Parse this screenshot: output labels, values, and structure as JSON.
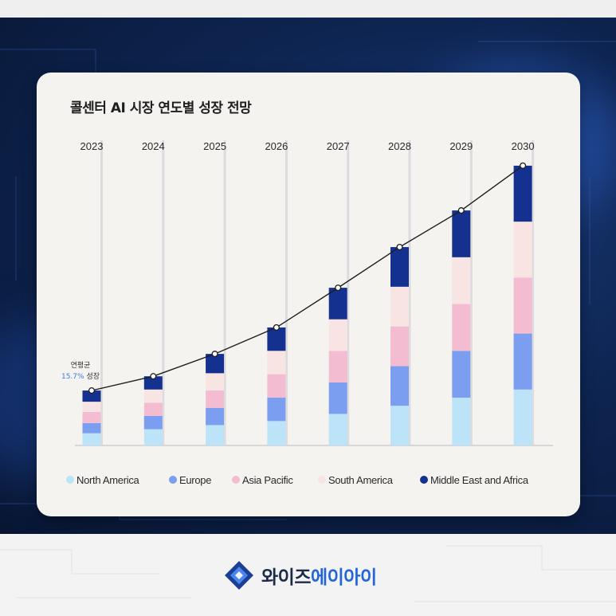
{
  "chart_data": {
    "type": "bar",
    "stacked": true,
    "title": "콜센터 AI 시장 연도별 성장 전망",
    "categories": [
      "2023",
      "2024",
      "2025",
      "2026",
      "2027",
      "2028",
      "2029",
      "2030"
    ],
    "series": [
      {
        "name": "North America",
        "color": "#bde3f8",
        "values": [
          1.2,
          1.6,
          2.0,
          2.4,
          3.1,
          3.9,
          4.7,
          5.5
        ]
      },
      {
        "name": "Europe",
        "color": "#7b9ef0",
        "values": [
          1.0,
          1.3,
          1.7,
          2.3,
          3.1,
          3.9,
          4.6,
          5.5
        ]
      },
      {
        "name": "Asia Pacific",
        "color": "#f3bcd1",
        "values": [
          1.1,
          1.3,
          1.7,
          2.3,
          3.1,
          3.9,
          4.6,
          5.5
        ]
      },
      {
        "name": "South America",
        "color": "#f8e4e3",
        "values": [
          1.0,
          1.3,
          1.7,
          2.3,
          3.1,
          3.9,
          4.6,
          5.5
        ]
      },
      {
        "name": "Middle East and Africa",
        "color": "#14318f",
        "values": [
          1.1,
          1.3,
          1.9,
          2.3,
          3.1,
          3.9,
          4.6,
          5.5
        ]
      }
    ],
    "trend_line": true,
    "ylim": [
      0,
      30
    ],
    "legend_position": "bottom",
    "annotation": {
      "line1": "연평균",
      "rate": "15.7%",
      "suffix": " 성장"
    }
  },
  "footer": {
    "brand_a": "와이즈",
    "brand_b": "에이아이"
  },
  "colors": {
    "background": "#0e2552",
    "card": "#f4f3ef",
    "line": "#1e1e1e",
    "brand_blue": "#2266d8"
  }
}
